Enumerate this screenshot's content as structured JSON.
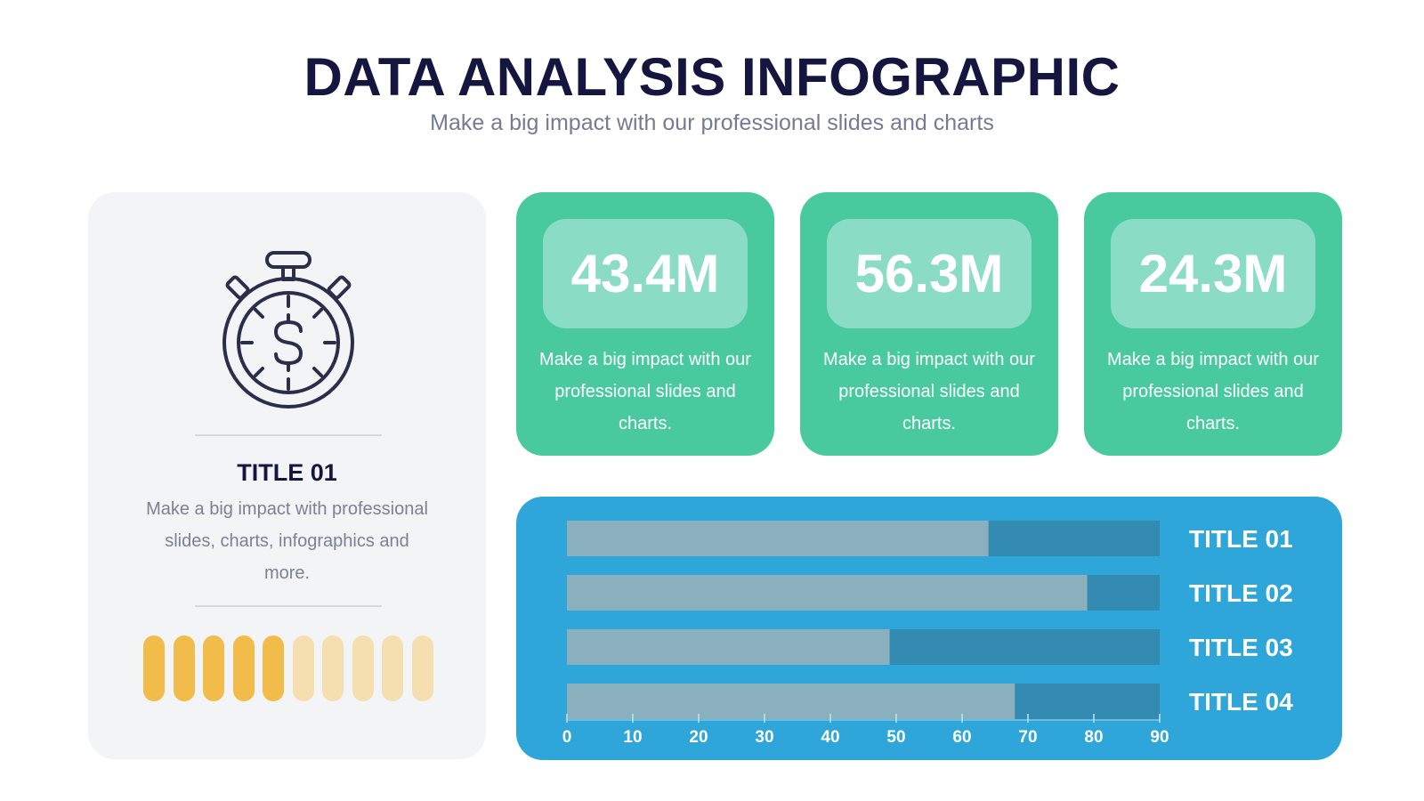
{
  "header": {
    "title": "DATA ANALYSIS INFOGRAPHIC",
    "subtitle": "Make a big impact with our professional slides and charts"
  },
  "left_card": {
    "icon": "stopwatch-dollar-icon",
    "title": "TITLE 01",
    "description": "Make a big impact with professional slides, charts, infographics and more.",
    "level": {
      "filled": 5,
      "total": 10
    }
  },
  "stats": [
    {
      "value": "43.4M",
      "text": "Make a big impact with our professional slides and charts."
    },
    {
      "value": "56.3M",
      "text": "Make a big impact with our professional slides and charts."
    },
    {
      "value": "24.3M",
      "text": "Make a big impact with our professional slides and charts."
    }
  ],
  "colors": {
    "navy": "#15163f",
    "green": "#48c99e",
    "green_light": "#8bdcc4",
    "blue": "#2ea6da",
    "bar_fill": "#8aafbd",
    "bar_track": "#338bb1",
    "pill_filled": "#f2bc4b",
    "pill_empty": "#f5deb0"
  },
  "chart_data": {
    "type": "bar",
    "orientation": "horizontal",
    "categories": [
      "TITLE 01",
      "TITLE 02",
      "TITLE 03",
      "TITLE 04"
    ],
    "values": [
      64,
      79,
      49,
      68
    ],
    "xlim": [
      0,
      90
    ],
    "xticks": [
      0,
      10,
      20,
      30,
      40,
      50,
      60,
      70,
      80,
      90
    ],
    "title": "",
    "xlabel": "",
    "ylabel": "",
    "grid": false
  }
}
